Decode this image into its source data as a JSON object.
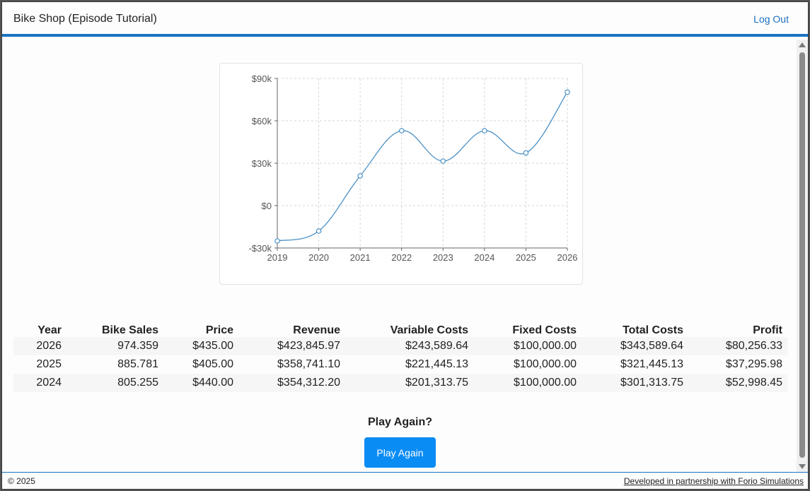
{
  "header": {
    "title": "Bike Shop (Episode Tutorial)",
    "logout_label": "Log Out"
  },
  "colors": {
    "brand_blue": "#1a73c0",
    "button_blue": "#0a8cf5",
    "line_color": "#4a90c4"
  },
  "chart_data": {
    "type": "line",
    "x": [
      "2019",
      "2020",
      "2021",
      "2022",
      "2023",
      "2024",
      "2025",
      "2026"
    ],
    "series": [
      {
        "values": [
          -25000,
          -18000,
          21000,
          53000,
          31500,
          53000,
          37295.98,
          80256.33
        ]
      }
    ],
    "y_ticks": [
      -30000,
      0,
      30000,
      60000,
      90000
    ],
    "y_tick_labels": [
      "-$30k",
      "$0",
      "$30k",
      "$60k",
      "$90k"
    ],
    "ylim": [
      -30000,
      90000
    ],
    "grid": true,
    "smooth": true,
    "markers": "open-circle"
  },
  "table": {
    "headers": [
      "Year",
      "Bike Sales",
      "Price",
      "Revenue",
      "Variable Costs",
      "Fixed Costs",
      "Total Costs",
      "Profit"
    ],
    "rows": [
      [
        "2026",
        "974.359",
        "$435.00",
        "$423,845.97",
        "$243,589.64",
        "$100,000.00",
        "$343,589.64",
        "$80,256.33"
      ],
      [
        "2025",
        "885.781",
        "$405.00",
        "$358,741.10",
        "$221,445.13",
        "$100,000.00",
        "$321,445.13",
        "$37,295.98"
      ],
      [
        "2024",
        "805.255",
        "$440.00",
        "$354,312.20",
        "$201,313.75",
        "$100,000.00",
        "$301,313.75",
        "$52,998.45"
      ]
    ]
  },
  "play": {
    "heading": "Play Again?",
    "button_label": "Play Again"
  },
  "footer": {
    "copyright": "© 2025",
    "partner_link": "Developed in partnership with Forio Simulations"
  }
}
